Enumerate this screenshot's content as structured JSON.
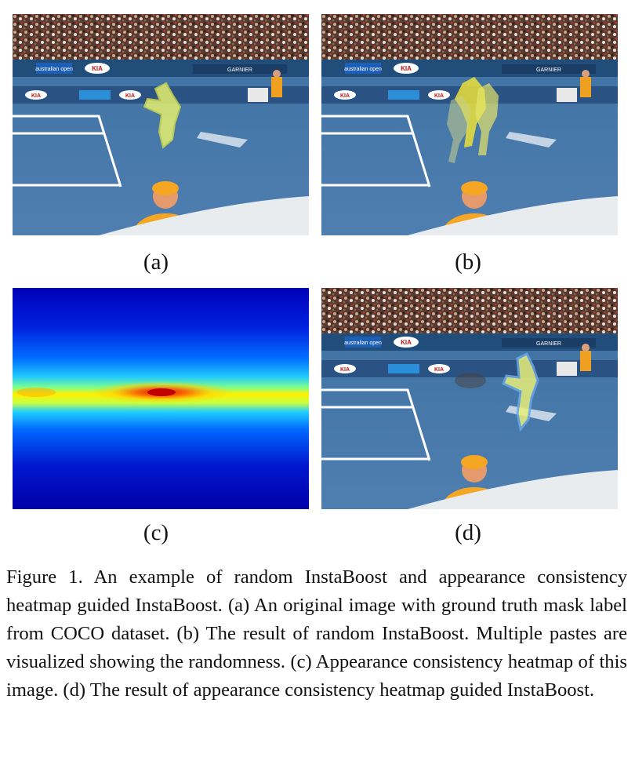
{
  "panels": [
    {
      "id": "a",
      "label": "(a)"
    },
    {
      "id": "b",
      "label": "(b)"
    },
    {
      "id": "c",
      "label": "(c)"
    },
    {
      "id": "d",
      "label": "(d)"
    }
  ],
  "scene_text": {
    "board1": "australian open",
    "board2": "KIA",
    "board3": "GARNIER"
  },
  "caption": "Figure 1. An example of random InstaBoost and appearance consistency heatmap guided InstaBoost. (a) An original image with ground truth mask label from COCO dataset. (b) The result of random InstaBoost. Multiple pastes are visualized showing the randomness. (c) Appearance consistency heatmap of this image. (d) The result of appearance consistency heatmap guided InstaBoost."
}
